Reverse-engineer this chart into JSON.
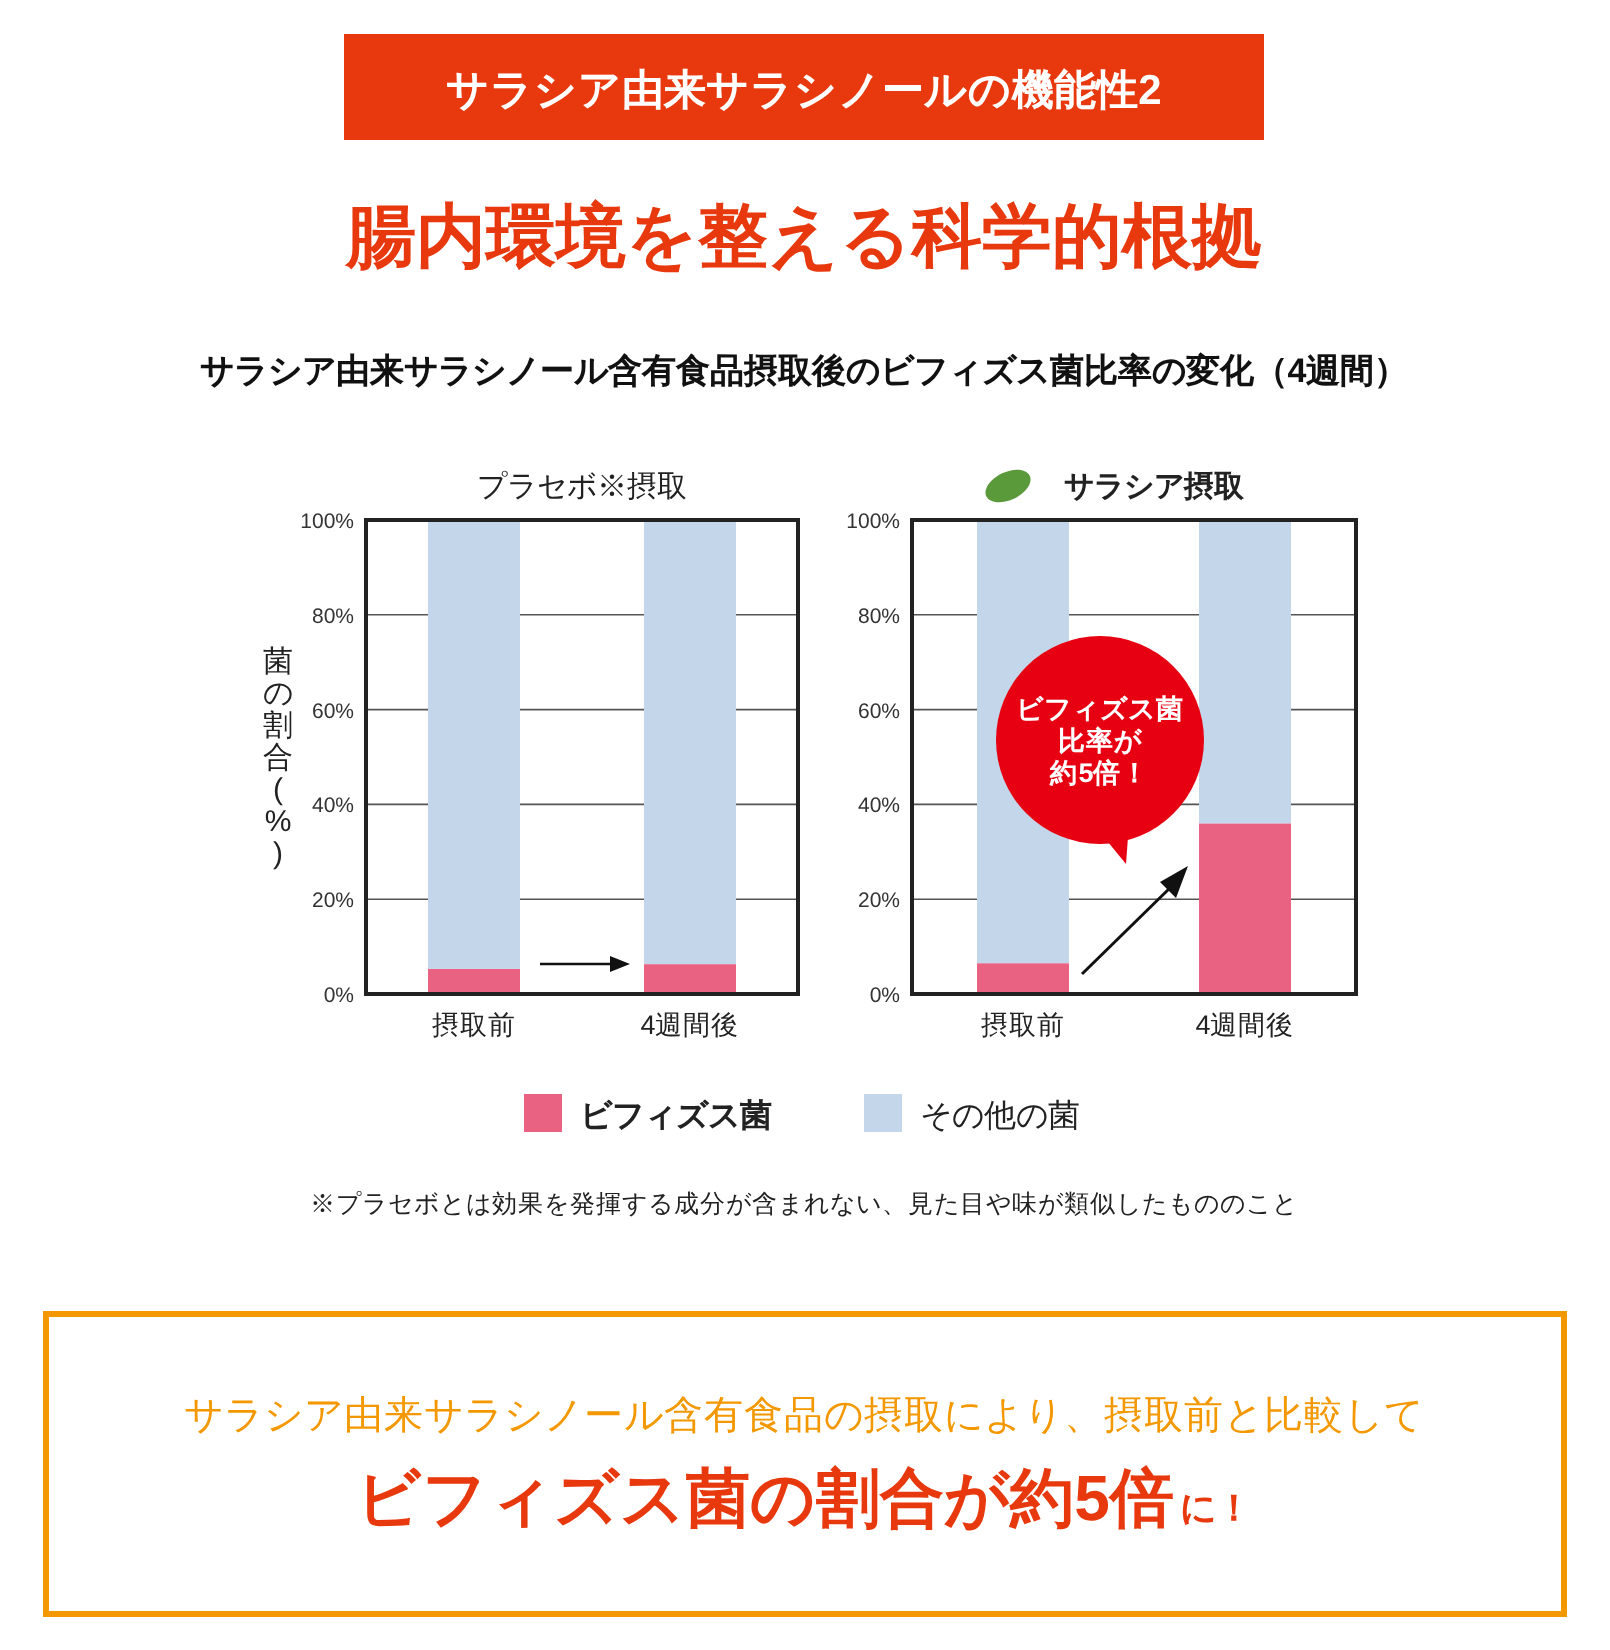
{
  "chart_data": [
    {
      "type": "other",
      "title": "腸内環境を整える科学的根拠",
      "subtitle": "サラシア由来サラシノール含有食品摂取後のビフィズス菌比率の変化（4週間）",
      "annotations": [
        "サラシア由来サラシノールの機能性2"
      ]
    },
    {
      "type": "bar",
      "stacked": true,
      "title": "プラセボ※摂取",
      "ylabel": "菌の割合(%)",
      "categories": [
        "摂取前",
        "4週間後"
      ],
      "series": [
        {
          "name": "ビフィズス菌",
          "color": "#e96282",
          "values": [
            5.3,
            6.3
          ]
        },
        {
          "name": "その他の菌",
          "color": "#c4d6e9",
          "values": [
            94.7,
            93.7
          ]
        }
      ],
      "ylim": [
        0,
        100
      ],
      "yticks": [
        {
          "value": 0,
          "label": "0%"
        },
        {
          "value": 20,
          "label": "20%"
        },
        {
          "value": 40,
          "label": "40%"
        },
        {
          "value": 60,
          "label": "60%"
        },
        {
          "value": 80,
          "label": "80%"
        },
        {
          "value": 100,
          "label": "100%"
        }
      ],
      "grid": "y",
      "legend": "bottom"
    },
    {
      "type": "bar",
      "stacked": true,
      "title": "サラシア摂取",
      "categories": [
        "摂取前",
        "4週間後"
      ],
      "series": [
        {
          "color": "#e96282",
          "values": [
            6.5,
            36
          ]
        },
        {
          "color": "#c4d6e9",
          "values": [
            93.5,
            64
          ]
        }
      ],
      "ylim": [
        0,
        100
      ],
      "yticks": [
        {
          "value": 0,
          "label": "0%"
        },
        {
          "value": 20,
          "label": "20%"
        },
        {
          "value": 40,
          "label": "40%"
        },
        {
          "value": 60,
          "label": "60%"
        },
        {
          "value": 80,
          "label": "80%"
        },
        {
          "value": 100,
          "label": "100%"
        }
      ],
      "grid": "y",
      "annotations": [
        "ビフィズス菌比率が約5倍！"
      ]
    },
    {
      "type": "other",
      "annotations": [
        "※プラセボとは効果を発揮する成分が含まれない、見た目や味が類似したもののこと",
        "サラシア由来サラシノール含有食品の摂取により、摂取前と比較して",
        "ビフィズス菌の割合が約5倍",
        "に！"
      ]
    }
  ]
}
